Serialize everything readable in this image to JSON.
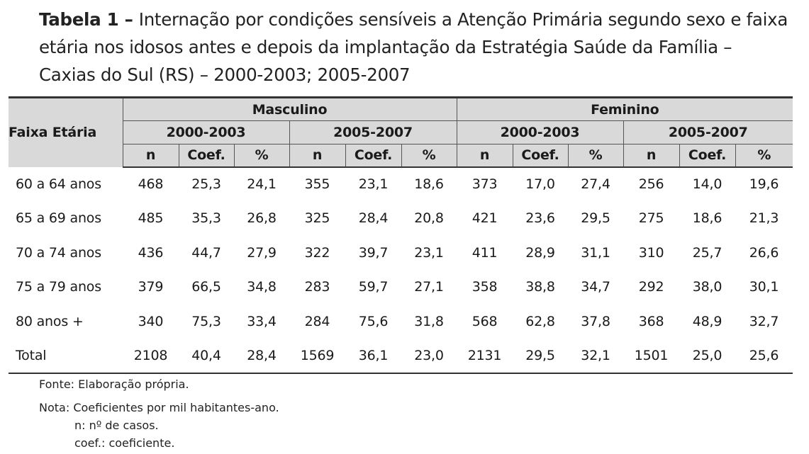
{
  "caption": {
    "label": "Tabela 1",
    "dash": " – ",
    "text": "Internação por condições sensíveis a Atenção Primária segundo sexo e faixa etária nos idosos antes e depois da implantação da Estratégia Saúde da Família – Caxias do Sul (RS) – 2000-2003; 2005-2007"
  },
  "table": {
    "stub_header": "Faixa Etária",
    "groups": [
      "Masculino",
      "Feminino"
    ],
    "periods": [
      "2000-2003",
      "2005-2007",
      "2000-2003",
      "2005-2007"
    ],
    "subheaders": [
      "n",
      "Coef.",
      "%",
      "n",
      "Coef.",
      "%",
      "n",
      "Coef.",
      "%",
      "n",
      "Coef.",
      "%"
    ],
    "rows": [
      {
        "label": "60 a 64 anos",
        "values": [
          "468",
          "25,3",
          "24,1",
          "355",
          "23,1",
          "18,6",
          "373",
          "17,0",
          "27,4",
          "256",
          "14,0",
          "19,6"
        ]
      },
      {
        "label": "65 a 69 anos",
        "values": [
          "485",
          "35,3",
          "26,8",
          "325",
          "28,4",
          "20,8",
          "421",
          "23,6",
          "29,5",
          "275",
          "18,6",
          "21,3"
        ]
      },
      {
        "label": "70 a 74 anos",
        "values": [
          "436",
          "44,7",
          "27,9",
          "322",
          "39,7",
          "23,1",
          "411",
          "28,9",
          "31,1",
          "310",
          "25,7",
          "26,6"
        ]
      },
      {
        "label": "75 a 79 anos",
        "values": [
          "379",
          "66,5",
          "34,8",
          "283",
          "59,7",
          "27,1",
          "358",
          "38,8",
          "34,7",
          "292",
          "38,0",
          "30,1"
        ]
      },
      {
        "label": "80 anos +",
        "values": [
          "340",
          "75,3",
          "33,4",
          "284",
          "75,6",
          "31,8",
          "568",
          "62,8",
          "37,8",
          "368",
          "48,9",
          "32,7"
        ]
      },
      {
        "label": "Total",
        "values": [
          "2108",
          "40,4",
          "28,4",
          "1569",
          "36,1",
          "23,0",
          "2131",
          "29,5",
          "32,1",
          "1501",
          "25,0",
          "25,6"
        ]
      }
    ]
  },
  "notes": {
    "source": "Fonte: Elaboração própria.",
    "note": "Nota: Coeficientes por mil habitantes-ano.",
    "n_def": "n: nº de casos.",
    "coef_def": "coef.: coeficiente."
  }
}
